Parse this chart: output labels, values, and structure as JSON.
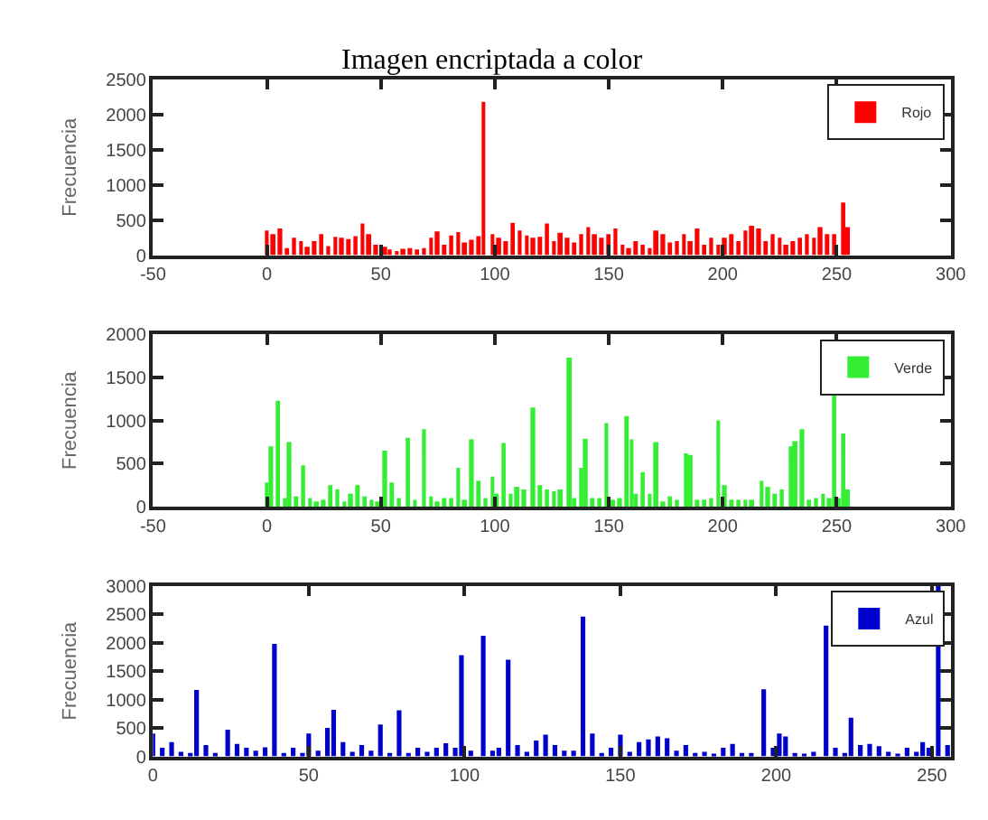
{
  "chart_data": [
    {
      "type": "bar",
      "title": "Imagen encriptada a color",
      "ylabel": "Frecuencia",
      "legend": "top right",
      "grid": false,
      "xlim": [
        -50,
        300
      ],
      "xticks": [
        -50,
        0,
        50,
        100,
        150,
        200,
        250,
        300
      ],
      "ylim": [
        0,
        2500
      ],
      "yticks": [
        0,
        500,
        1000,
        1500,
        2000,
        2500
      ],
      "x": [
        0,
        3,
        6,
        9,
        12,
        15,
        18,
        21,
        24,
        27,
        30,
        33,
        36,
        39,
        42,
        45,
        48,
        52,
        54,
        57,
        60,
        63,
        66,
        69,
        72,
        75,
        78,
        81,
        84,
        87,
        90,
        93,
        95,
        99,
        102,
        105,
        108,
        111,
        114,
        117,
        120,
        123,
        126,
        129,
        132,
        135,
        138,
        141,
        144,
        147,
        150,
        153,
        156,
        159,
        162,
        165,
        168,
        171,
        174,
        177,
        180,
        183,
        186,
        189,
        192,
        195,
        198,
        201,
        204,
        207,
        210,
        213,
        216,
        219,
        222,
        225,
        228,
        231,
        234,
        237,
        240,
        243,
        246,
        249,
        253,
        255
      ],
      "series": [
        {
          "name": "Rojo",
          "color": "#ff0000",
          "values": [
            350,
            300,
            380,
            100,
            250,
            200,
            120,
            200,
            300,
            130,
            260,
            250,
            230,
            270,
            450,
            300,
            150,
            120,
            80,
            60,
            90,
            100,
            80,
            100,
            250,
            340,
            150,
            280,
            330,
            180,
            220,
            270,
            2180,
            300,
            250,
            200,
            460,
            350,
            280,
            250,
            260,
            450,
            200,
            320,
            250,
            180,
            300,
            400,
            300,
            250,
            300,
            380,
            150,
            100,
            200,
            150,
            100,
            350,
            300,
            180,
            200,
            300,
            200,
            380,
            150,
            250,
            150,
            250,
            300,
            200,
            350,
            420,
            380,
            200,
            300,
            250,
            150,
            200,
            250,
            300,
            250,
            400,
            300,
            300,
            750,
            400
          ]
        }
      ]
    },
    {
      "type": "bar",
      "ylabel": "Frecuencia",
      "legend": "top right",
      "grid": false,
      "xlim": [
        -50,
        300
      ],
      "xticks": [
        -50,
        0,
        50,
        100,
        150,
        200,
        250,
        300
      ],
      "ylim": [
        0,
        2000
      ],
      "yticks": [
        0,
        500,
        1000,
        1500,
        2000
      ],
      "x": [
        0,
        2,
        5,
        8,
        10,
        13,
        16,
        19,
        22,
        25,
        28,
        31,
        34,
        37,
        40,
        43,
        46,
        49,
        52,
        55,
        58,
        62,
        65,
        69,
        72,
        75,
        78,
        81,
        84,
        87,
        90,
        93,
        96,
        99,
        101,
        104,
        107,
        110,
        113,
        117,
        120,
        123,
        126,
        129,
        133,
        135,
        138,
        140,
        143,
        146,
        149,
        152,
        155,
        158,
        160,
        162,
        165,
        168,
        171,
        174,
        177,
        180,
        184,
        186,
        189,
        192,
        195,
        198,
        201,
        204,
        207,
        210,
        213,
        217,
        220,
        223,
        226,
        230,
        232,
        235,
        238,
        241,
        244,
        247,
        249,
        251,
        253,
        255
      ],
      "series": [
        {
          "name": "Verde",
          "color": "#33ee33",
          "values": [
            280,
            700,
            1230,
            100,
            750,
            120,
            480,
            100,
            60,
            80,
            250,
            200,
            60,
            150,
            250,
            120,
            80,
            60,
            650,
            280,
            100,
            800,
            80,
            900,
            120,
            60,
            100,
            100,
            450,
            80,
            780,
            300,
            100,
            350,
            150,
            740,
            150,
            230,
            200,
            1150,
            250,
            200,
            180,
            200,
            1730,
            100,
            450,
            790,
            100,
            100,
            970,
            80,
            100,
            1050,
            780,
            150,
            400,
            150,
            750,
            60,
            120,
            80,
            620,
            600,
            80,
            80,
            100,
            1000,
            250,
            80,
            80,
            80,
            80,
            300,
            230,
            150,
            200,
            700,
            760,
            900,
            80,
            100,
            150,
            100,
            1320,
            100,
            850,
            200
          ]
        }
      ]
    },
    {
      "type": "bar",
      "ylabel": "Frecuencia",
      "legend": "top right",
      "grid": false,
      "xlim": [
        0,
        256
      ],
      "xticks": [
        0,
        50,
        100,
        150,
        200,
        250
      ],
      "ylim": [
        0,
        3000
      ],
      "yticks": [
        0,
        500,
        1000,
        1500,
        2000,
        2500,
        3000
      ],
      "x": [
        0,
        3,
        6,
        9,
        12,
        14,
        17,
        20,
        24,
        27,
        30,
        33,
        36,
        39,
        42,
        45,
        48,
        50,
        53,
        56,
        58,
        61,
        64,
        67,
        70,
        73,
        76,
        79,
        82,
        85,
        88,
        91,
        94,
        97,
        99,
        102,
        106,
        109,
        111,
        114,
        117,
        120,
        123,
        126,
        129,
        132,
        135,
        138,
        141,
        144,
        147,
        150,
        153,
        156,
        159,
        162,
        165,
        168,
        171,
        174,
        177,
        180,
        183,
        186,
        189,
        192,
        196,
        199,
        201,
        203,
        206,
        209,
        212,
        216,
        219,
        222,
        224,
        227,
        230,
        233,
        236,
        239,
        242,
        245,
        247,
        249,
        252,
        255
      ],
      "series": [
        {
          "name": "Azul",
          "color": "#0000cc",
          "values": [
            400,
            150,
            250,
            80,
            60,
            1170,
            200,
            60,
            470,
            220,
            150,
            100,
            160,
            1980,
            60,
            150,
            60,
            400,
            100,
            500,
            820,
            250,
            80,
            200,
            100,
            560,
            60,
            810,
            60,
            150,
            80,
            150,
            230,
            150,
            1780,
            100,
            2120,
            100,
            150,
            1700,
            200,
            80,
            280,
            380,
            200,
            100,
            100,
            2460,
            400,
            60,
            150,
            380,
            80,
            250,
            300,
            350,
            320,
            100,
            200,
            60,
            80,
            50,
            150,
            220,
            60,
            60,
            1180,
            150,
            400,
            350,
            60,
            50,
            80,
            2300,
            150,
            60,
            680,
            200,
            220,
            180,
            80,
            50,
            150,
            80,
            250,
            150,
            3000,
            200
          ]
        }
      ]
    }
  ]
}
